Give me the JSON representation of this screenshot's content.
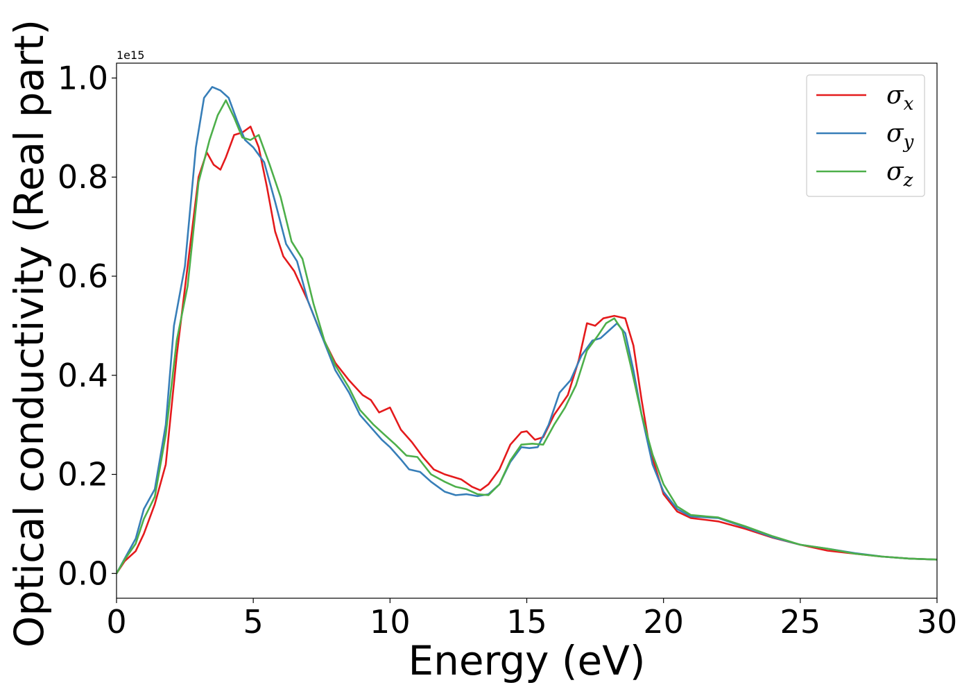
{
  "chart_data": {
    "type": "line",
    "title": "",
    "xlabel": "Energy (eV)",
    "ylabel": "Optical conductivity (Real part)",
    "y_offset_label": "1e15",
    "xlim": [
      0,
      30
    ],
    "ylim": [
      -0.05,
      1.03
    ],
    "xticks": [
      0,
      5,
      10,
      15,
      20,
      25,
      30
    ],
    "yticks": [
      0.0,
      0.2,
      0.4,
      0.6,
      0.8,
      1.0
    ],
    "xtick_labels": [
      "0",
      "5",
      "10",
      "15",
      "20",
      "25",
      "30"
    ],
    "ytick_labels": [
      "0.0",
      "0.2",
      "0.4",
      "0.6",
      "0.8",
      "1.0"
    ],
    "grid": false,
    "legend_position": "top-right",
    "series": [
      {
        "name": "σ",
        "subscript": "x",
        "color": "#e41a1c",
        "points": [
          [
            0,
            0
          ],
          [
            0.3,
            0.025
          ],
          [
            0.7,
            0.045
          ],
          [
            1.0,
            0.08
          ],
          [
            1.4,
            0.14
          ],
          [
            1.8,
            0.22
          ],
          [
            2.2,
            0.44
          ],
          [
            2.6,
            0.62
          ],
          [
            3.0,
            0.8
          ],
          [
            3.3,
            0.85
          ],
          [
            3.55,
            0.825
          ],
          [
            3.8,
            0.815
          ],
          [
            4.0,
            0.84
          ],
          [
            4.3,
            0.885
          ],
          [
            4.6,
            0.89
          ],
          [
            4.9,
            0.902
          ],
          [
            5.2,
            0.86
          ],
          [
            5.5,
            0.78
          ],
          [
            5.8,
            0.69
          ],
          [
            6.1,
            0.64
          ],
          [
            6.5,
            0.61
          ],
          [
            7.0,
            0.55
          ],
          [
            7.5,
            0.48
          ],
          [
            8.0,
            0.425
          ],
          [
            8.5,
            0.39
          ],
          [
            9.0,
            0.36
          ],
          [
            9.3,
            0.35
          ],
          [
            9.6,
            0.325
          ],
          [
            10.0,
            0.335
          ],
          [
            10.4,
            0.29
          ],
          [
            10.8,
            0.265
          ],
          [
            11.2,
            0.235
          ],
          [
            11.6,
            0.21
          ],
          [
            12.0,
            0.2
          ],
          [
            12.6,
            0.19
          ],
          [
            13.0,
            0.175
          ],
          [
            13.3,
            0.168
          ],
          [
            13.6,
            0.18
          ],
          [
            14.0,
            0.21
          ],
          [
            14.4,
            0.26
          ],
          [
            14.8,
            0.285
          ],
          [
            15.0,
            0.287
          ],
          [
            15.3,
            0.27
          ],
          [
            15.6,
            0.275
          ],
          [
            16.0,
            0.32
          ],
          [
            16.5,
            0.36
          ],
          [
            16.9,
            0.43
          ],
          [
            17.2,
            0.505
          ],
          [
            17.5,
            0.5
          ],
          [
            17.8,
            0.515
          ],
          [
            18.2,
            0.52
          ],
          [
            18.6,
            0.515
          ],
          [
            18.9,
            0.46
          ],
          [
            19.2,
            0.35
          ],
          [
            19.5,
            0.25
          ],
          [
            20.0,
            0.16
          ],
          [
            20.5,
            0.125
          ],
          [
            21.0,
            0.112
          ],
          [
            22.0,
            0.105
          ],
          [
            23.0,
            0.09
          ],
          [
            24.0,
            0.072
          ],
          [
            25.0,
            0.058
          ],
          [
            26.0,
            0.046
          ],
          [
            27.0,
            0.04
          ],
          [
            28.0,
            0.034
          ],
          [
            29.0,
            0.03
          ],
          [
            30.0,
            0.028
          ]
        ]
      },
      {
        "name": "σ",
        "subscript": "y",
        "color": "#377eb8",
        "points": [
          [
            0,
            0
          ],
          [
            0.3,
            0.03
          ],
          [
            0.7,
            0.07
          ],
          [
            1.0,
            0.13
          ],
          [
            1.4,
            0.17
          ],
          [
            1.8,
            0.3
          ],
          [
            2.1,
            0.5
          ],
          [
            2.5,
            0.62
          ],
          [
            2.9,
            0.86
          ],
          [
            3.2,
            0.96
          ],
          [
            3.5,
            0.982
          ],
          [
            3.8,
            0.975
          ],
          [
            4.1,
            0.96
          ],
          [
            4.4,
            0.915
          ],
          [
            4.7,
            0.875
          ],
          [
            5.0,
            0.86
          ],
          [
            5.4,
            0.83
          ],
          [
            5.8,
            0.75
          ],
          [
            6.2,
            0.665
          ],
          [
            6.6,
            0.63
          ],
          [
            7.0,
            0.55
          ],
          [
            7.5,
            0.48
          ],
          [
            8.0,
            0.41
          ],
          [
            8.5,
            0.365
          ],
          [
            8.9,
            0.32
          ],
          [
            9.3,
            0.295
          ],
          [
            9.7,
            0.27
          ],
          [
            10.0,
            0.255
          ],
          [
            10.4,
            0.23
          ],
          [
            10.7,
            0.21
          ],
          [
            11.1,
            0.205
          ],
          [
            11.5,
            0.185
          ],
          [
            12.0,
            0.165
          ],
          [
            12.4,
            0.158
          ],
          [
            12.8,
            0.16
          ],
          [
            13.2,
            0.156
          ],
          [
            13.6,
            0.16
          ],
          [
            14.0,
            0.18
          ],
          [
            14.4,
            0.225
          ],
          [
            14.8,
            0.255
          ],
          [
            15.1,
            0.253
          ],
          [
            15.4,
            0.255
          ],
          [
            15.8,
            0.3
          ],
          [
            16.2,
            0.365
          ],
          [
            16.6,
            0.39
          ],
          [
            17.0,
            0.44
          ],
          [
            17.4,
            0.47
          ],
          [
            17.7,
            0.475
          ],
          [
            18.0,
            0.49
          ],
          [
            18.3,
            0.505
          ],
          [
            18.6,
            0.485
          ],
          [
            18.9,
            0.41
          ],
          [
            19.2,
            0.32
          ],
          [
            19.6,
            0.22
          ],
          [
            20.0,
            0.165
          ],
          [
            20.5,
            0.13
          ],
          [
            21.0,
            0.115
          ],
          [
            22.0,
            0.112
          ],
          [
            23.0,
            0.093
          ],
          [
            24.0,
            0.073
          ],
          [
            25.0,
            0.058
          ],
          [
            26.0,
            0.05
          ],
          [
            27.0,
            0.041
          ],
          [
            28.0,
            0.034
          ],
          [
            29.0,
            0.03
          ],
          [
            30.0,
            0.028
          ]
        ]
      },
      {
        "name": "σ",
        "subscript": "z",
        "color": "#4daf4a",
        "points": [
          [
            0,
            0
          ],
          [
            0.3,
            0.028
          ],
          [
            0.7,
            0.06
          ],
          [
            1.0,
            0.11
          ],
          [
            1.4,
            0.155
          ],
          [
            1.8,
            0.28
          ],
          [
            2.2,
            0.47
          ],
          [
            2.6,
            0.58
          ],
          [
            3.0,
            0.79
          ],
          [
            3.4,
            0.875
          ],
          [
            3.7,
            0.925
          ],
          [
            4.0,
            0.955
          ],
          [
            4.3,
            0.92
          ],
          [
            4.6,
            0.88
          ],
          [
            4.9,
            0.875
          ],
          [
            5.2,
            0.885
          ],
          [
            5.6,
            0.825
          ],
          [
            6.0,
            0.76
          ],
          [
            6.4,
            0.67
          ],
          [
            6.8,
            0.635
          ],
          [
            7.2,
            0.545
          ],
          [
            7.6,
            0.47
          ],
          [
            8.0,
            0.42
          ],
          [
            8.5,
            0.375
          ],
          [
            8.9,
            0.33
          ],
          [
            9.4,
            0.3
          ],
          [
            9.8,
            0.28
          ],
          [
            10.2,
            0.26
          ],
          [
            10.6,
            0.238
          ],
          [
            11.0,
            0.235
          ],
          [
            11.5,
            0.2
          ],
          [
            12.0,
            0.185
          ],
          [
            12.4,
            0.175
          ],
          [
            12.8,
            0.17
          ],
          [
            13.2,
            0.16
          ],
          [
            13.6,
            0.158
          ],
          [
            14.0,
            0.18
          ],
          [
            14.4,
            0.228
          ],
          [
            14.8,
            0.26
          ],
          [
            15.2,
            0.262
          ],
          [
            15.6,
            0.26
          ],
          [
            16.0,
            0.3
          ],
          [
            16.4,
            0.335
          ],
          [
            16.8,
            0.38
          ],
          [
            17.2,
            0.45
          ],
          [
            17.6,
            0.48
          ],
          [
            17.9,
            0.505
          ],
          [
            18.2,
            0.515
          ],
          [
            18.5,
            0.49
          ],
          [
            18.8,
            0.42
          ],
          [
            19.2,
            0.32
          ],
          [
            19.6,
            0.24
          ],
          [
            20.0,
            0.18
          ],
          [
            20.5,
            0.135
          ],
          [
            21.0,
            0.118
          ],
          [
            22.0,
            0.113
          ],
          [
            23.0,
            0.095
          ],
          [
            24.0,
            0.075
          ],
          [
            25.0,
            0.058
          ],
          [
            26.0,
            0.05
          ],
          [
            27.0,
            0.04
          ],
          [
            28.0,
            0.034
          ],
          [
            29.0,
            0.03
          ],
          [
            30.0,
            0.028
          ]
        ]
      }
    ]
  }
}
